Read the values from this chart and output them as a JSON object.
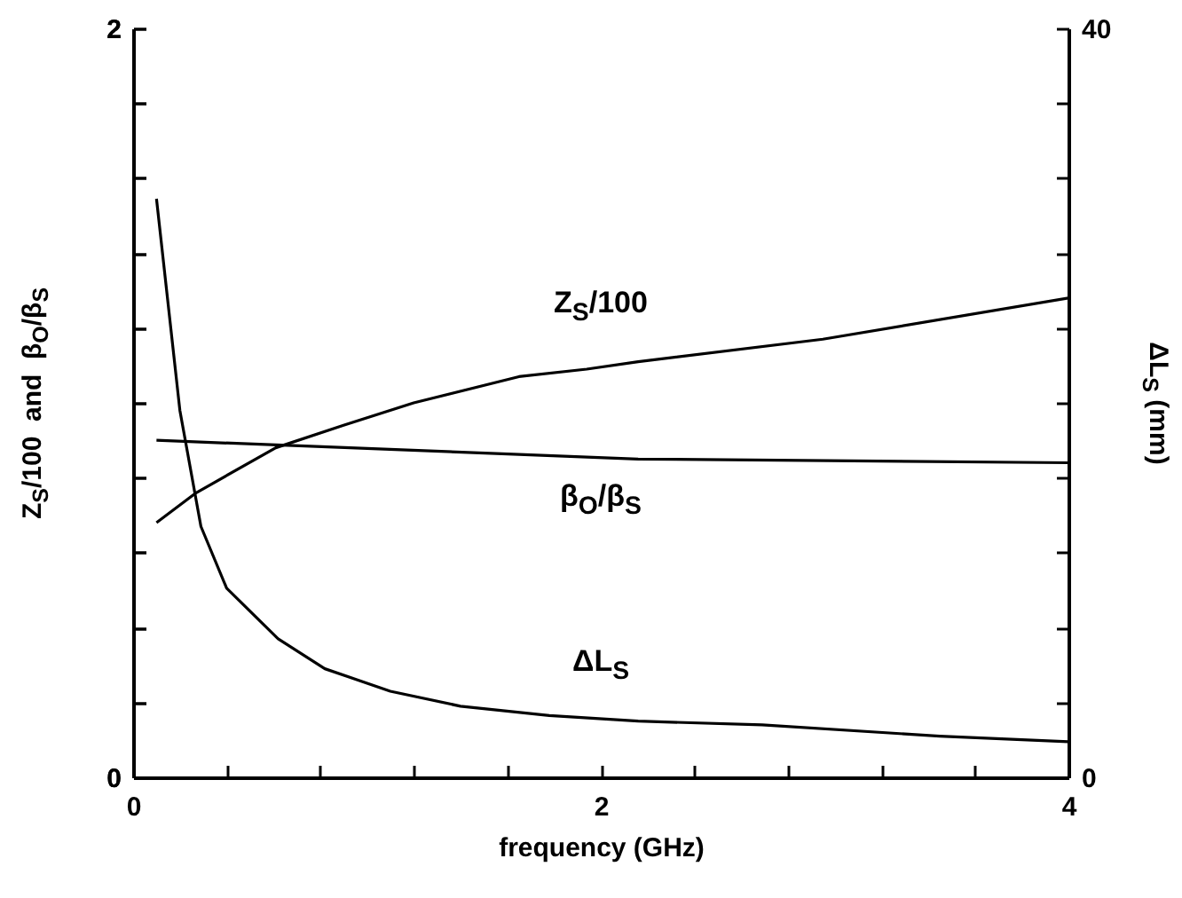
{
  "chart_data": {
    "type": "line",
    "xlabel": "frequency (GHz)",
    "ylabel": "Z$_{S}$/100  and  β$_{O}$/β$_{S}$",
    "y2label": "ΔL$_{S}$ (mm)",
    "xlim": [
      0,
      4
    ],
    "xticks": [
      0,
      {
        "value": 0.4,
        "label": null
      },
      {
        "value": 0.8,
        "label": null
      },
      {
        "value": 1.2,
        "label": null
      },
      {
        "value": 1.6,
        "label": null
      },
      2,
      {
        "value": 2.4,
        "label": null
      },
      {
        "value": 2.8,
        "label": null
      },
      {
        "value": 3.2,
        "label": null
      },
      {
        "value": 3.6,
        "label": null
      },
      4
    ],
    "ylim": [
      0,
      2
    ],
    "yticks": [
      0,
      {
        "value": 0.2,
        "label": null
      },
      {
        "value": 0.4,
        "label": null
      },
      {
        "value": 0.6,
        "label": null
      },
      {
        "value": 0.8,
        "label": null
      },
      {
        "value": 1.0,
        "label": null
      },
      {
        "value": 1.2,
        "label": null
      },
      {
        "value": 1.4,
        "label": null
      },
      {
        "value": 1.6,
        "label": null
      },
      {
        "value": 1.8,
        "label": null
      },
      2
    ],
    "y2lim": [
      0,
      40
    ],
    "y2ticks": [
      0,
      {
        "value": 4,
        "label": null
      },
      {
        "value": 8,
        "label": null
      },
      {
        "value": 12,
        "label": null
      },
      {
        "value": 16,
        "label": null
      },
      {
        "value": 20,
        "label": null
      },
      {
        "value": 24,
        "label": null
      },
      {
        "value": 28,
        "label": null
      },
      {
        "value": 32,
        "label": null
      },
      {
        "value": 36,
        "label": null
      },
      40
    ],
    "series": [
      {
        "color": "#000000",
        "x": [
          0.1,
          0.27,
          0.61,
          0.9,
          1.2,
          1.65,
          1.94,
          2.16,
          2.95,
          4.0
        ],
        "values": [
          0.68,
          0.76,
          0.88,
          0.94,
          1.0,
          1.07,
          1.09,
          1.11,
          1.17,
          1.28
        ]
      },
      {
        "color": "#000000",
        "x": [
          0.1,
          2.16,
          4.0
        ],
        "values": [
          0.9,
          0.85,
          0.84
        ]
      },
      {
        "color": "#000000",
        "axis": "y2",
        "x": [
          0.1,
          0.2,
          0.29,
          0.4,
          0.62,
          0.82,
          1.1,
          1.4,
          1.78,
          2.16,
          2.69,
          3.45,
          4.0
        ],
        "values": [
          30.9,
          19.6,
          13.4,
          10.1,
          7.4,
          5.8,
          4.6,
          3.8,
          3.3,
          3.0,
          2.8,
          2.2,
          1.9
        ]
      }
    ],
    "annotations": [
      "Z$_{S}$/100",
      "β$_{O}$/β$_{S}$",
      "ΔL$_{S}$"
    ]
  }
}
